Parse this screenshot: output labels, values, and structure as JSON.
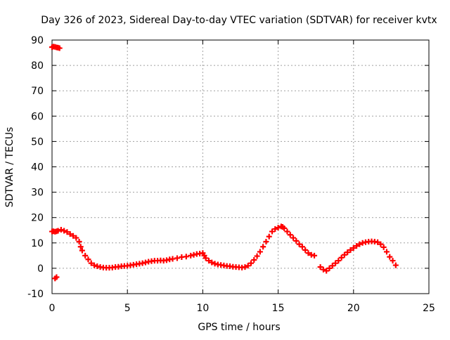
{
  "chart_data": {
    "type": "scatter",
    "title": "Day 326 of 2023, Sidereal Day-to-day VTEC variation (SDTVAR) for receiver kvtx",
    "xlabel": "GPS time / hours",
    "ylabel": "SDTVAR / TECUs",
    "xlim": [
      0,
      25
    ],
    "ylim": [
      -10,
      90
    ],
    "xticks": [
      0,
      5,
      10,
      15,
      20,
      25
    ],
    "yticks": [
      -10,
      0,
      10,
      20,
      30,
      40,
      50,
      60,
      70,
      80,
      90
    ],
    "grid": true,
    "legend": "none",
    "marker": "+",
    "color": "#ff0000",
    "series": [
      {
        "name": "kvtx",
        "x": [
          0.0,
          0.1,
          0.2,
          0.3,
          0.4,
          0.5,
          0.2,
          0.3,
          0.0,
          0.1,
          0.2,
          0.3,
          0.4,
          0.6,
          0.8,
          1.0,
          1.2,
          1.4,
          1.6,
          1.8,
          1.9,
          2.0,
          2.2,
          2.4,
          2.6,
          2.8,
          3.0,
          3.2,
          3.4,
          3.6,
          3.8,
          4.0,
          4.2,
          4.4,
          4.6,
          4.8,
          5.0,
          5.2,
          5.4,
          5.6,
          5.8,
          6.0,
          6.2,
          6.4,
          6.6,
          6.8,
          7.0,
          7.2,
          7.4,
          7.6,
          7.8,
          8.0,
          8.3,
          8.6,
          8.9,
          9.2,
          9.4,
          9.6,
          9.8,
          10.0,
          10.1,
          10.2,
          10.4,
          10.6,
          10.8,
          11.0,
          11.2,
          11.4,
          11.6,
          11.8,
          12.0,
          12.2,
          12.4,
          12.6,
          12.8,
          13.0,
          13.2,
          13.4,
          13.6,
          13.8,
          14.0,
          14.2,
          14.4,
          14.6,
          14.8,
          15.0,
          15.2,
          15.3,
          15.4,
          15.6,
          15.8,
          16.0,
          16.2,
          16.4,
          16.6,
          16.8,
          17.0,
          17.2,
          17.4,
          17.6,
          17.8,
          18.0,
          18.2,
          18.4,
          18.6,
          18.8,
          19.0,
          19.2,
          19.4,
          19.6,
          19.8,
          20.0,
          20.2,
          20.4,
          20.6,
          20.8,
          21.0,
          21.2,
          21.4,
          21.6,
          21.8,
          22.0,
          22.2,
          22.4,
          22.6,
          22.8
        ],
        "y": [
          87.2,
          87.4,
          87.3,
          87.1,
          87.0,
          86.8,
          -4.0,
          -3.5,
          14.5,
          14.6,
          14.4,
          14.6,
          14.8,
          15.2,
          14.8,
          14.3,
          13.5,
          12.8,
          12.0,
          10.5,
          8.5,
          7.0,
          5.0,
          3.5,
          2.0,
          1.2,
          0.8,
          0.5,
          0.3,
          0.2,
          0.2,
          0.3,
          0.5,
          0.6,
          0.8,
          0.9,
          1.0,
          1.2,
          1.4,
          1.6,
          1.8,
          2.0,
          2.3,
          2.6,
          2.8,
          3.0,
          3.0,
          3.1,
          3.0,
          3.2,
          3.5,
          3.7,
          4.0,
          4.4,
          4.6,
          5.0,
          5.3,
          5.6,
          5.8,
          6.0,
          5.0,
          4.0,
          3.0,
          2.3,
          1.8,
          1.5,
          1.3,
          1.1,
          0.9,
          0.8,
          0.6,
          0.5,
          0.4,
          0.3,
          0.5,
          1.0,
          2.0,
          3.3,
          4.8,
          6.5,
          8.5,
          10.5,
          12.5,
          14.5,
          15.5,
          16.0,
          16.5,
          16.3,
          15.8,
          14.5,
          13.2,
          12.0,
          10.8,
          9.5,
          8.5,
          7.2,
          6.0,
          5.3,
          5.0,
          null,
          0.5,
          -0.5,
          -1.0,
          0.0,
          1.0,
          2.0,
          3.0,
          4.2,
          5.3,
          6.3,
          7.2,
          8.0,
          8.8,
          9.5,
          10.0,
          10.3,
          10.5,
          10.6,
          10.5,
          10.3,
          9.5,
          8.3,
          6.5,
          4.5,
          3.0,
          1.2
        ]
      }
    ]
  }
}
